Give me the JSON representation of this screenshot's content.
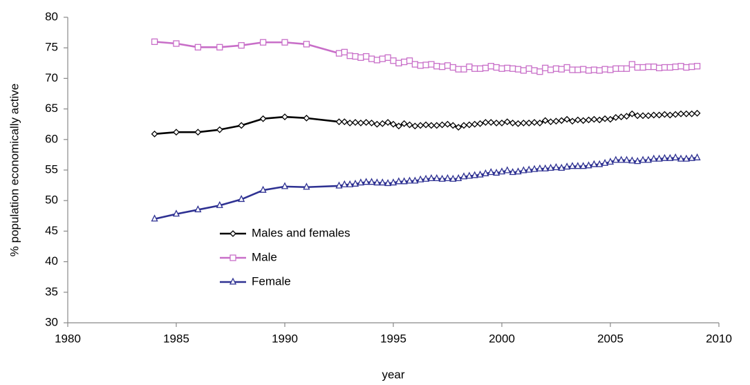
{
  "chart_data": {
    "type": "line",
    "x_label": "year",
    "y_label": "% population economically active",
    "x": [
      1984,
      1985,
      1986,
      1987,
      1988,
      1989,
      1990,
      1991,
      1992.5,
      1992.75,
      1993,
      1993.25,
      1993.5,
      1993.75,
      1994,
      1994.25,
      1994.5,
      1994.75,
      1995,
      1995.25,
      1995.5,
      1995.75,
      1996,
      1996.25,
      1996.5,
      1996.75,
      1997,
      1997.25,
      1997.5,
      1997.75,
      1998,
      1998.25,
      1998.5,
      1998.75,
      1999,
      1999.25,
      1999.5,
      1999.75,
      2000,
      2000.25,
      2000.5,
      2000.75,
      2001,
      2001.25,
      2001.5,
      2001.75,
      2002,
      2002.25,
      2002.5,
      2002.75,
      2003,
      2003.25,
      2003.5,
      2003.75,
      2004,
      2004.25,
      2004.5,
      2004.75,
      2005,
      2005.25,
      2005.5,
      2005.75,
      2006,
      2006.25,
      2006.5,
      2006.75,
      2007,
      2007.25,
      2007.5,
      2007.75,
      2008,
      2008.25,
      2008.5,
      2008.75,
      2009
    ],
    "series": [
      {
        "name": "Males and females",
        "color": "#000000",
        "marker": "diamond",
        "values": [
          60.9,
          61.2,
          61.2,
          61.6,
          62.3,
          63.4,
          63.7,
          63.5,
          62.9,
          62.9,
          62.7,
          62.8,
          62.7,
          62.8,
          62.7,
          62.5,
          62.6,
          62.8,
          62.5,
          62.2,
          62.6,
          62.4,
          62.2,
          62.3,
          62.4,
          62.3,
          62.3,
          62.4,
          62.5,
          62.3,
          62.0,
          62.3,
          62.4,
          62.5,
          62.6,
          62.8,
          62.8,
          62.7,
          62.7,
          62.9,
          62.7,
          62.6,
          62.7,
          62.7,
          62.8,
          62.7,
          63.1,
          62.9,
          63.0,
          63.1,
          63.3,
          63.0,
          63.2,
          63.1,
          63.2,
          63.3,
          63.2,
          63.4,
          63.3,
          63.6,
          63.7,
          63.8,
          64.2,
          63.9,
          63.9,
          63.9,
          64.0,
          64.0,
          64.1,
          64.0,
          64.1,
          64.2,
          64.2,
          64.2,
          64.3
        ]
      },
      {
        "name": "Male",
        "color": "#c86ec8",
        "marker": "square",
        "values": [
          76.0,
          75.7,
          75.1,
          75.1,
          75.4,
          75.9,
          75.9,
          75.6,
          74.1,
          74.3,
          73.7,
          73.6,
          73.4,
          73.6,
          73.2,
          73.0,
          73.2,
          73.4,
          72.9,
          72.5,
          72.7,
          72.9,
          72.3,
          72.1,
          72.2,
          72.3,
          72.0,
          71.9,
          72.1,
          71.8,
          71.5,
          71.5,
          71.9,
          71.6,
          71.6,
          71.7,
          72.0,
          71.8,
          71.6,
          71.7,
          71.6,
          71.5,
          71.3,
          71.6,
          71.3,
          71.1,
          71.7,
          71.4,
          71.6,
          71.5,
          71.8,
          71.4,
          71.4,
          71.5,
          71.3,
          71.4,
          71.3,
          71.5,
          71.4,
          71.6,
          71.6,
          71.6,
          72.3,
          71.8,
          71.8,
          71.9,
          71.9,
          71.7,
          71.8,
          71.8,
          71.9,
          72.0,
          71.8,
          71.9,
          72.0
        ]
      },
      {
        "name": "Female",
        "color": "#2e3192",
        "marker": "triangle",
        "values": [
          47.0,
          47.8,
          48.5,
          49.2,
          50.2,
          51.7,
          52.3,
          52.2,
          52.4,
          52.6,
          52.6,
          52.7,
          52.9,
          53.0,
          53.0,
          52.9,
          52.9,
          52.8,
          52.9,
          53.1,
          53.1,
          53.2,
          53.2,
          53.4,
          53.5,
          53.6,
          53.6,
          53.5,
          53.6,
          53.5,
          53.6,
          53.9,
          54.0,
          54.1,
          54.2,
          54.4,
          54.6,
          54.5,
          54.7,
          54.9,
          54.6,
          54.7,
          54.9,
          55.0,
          55.1,
          55.2,
          55.2,
          55.3,
          55.4,
          55.3,
          55.5,
          55.6,
          55.6,
          55.6,
          55.7,
          55.9,
          55.9,
          56.1,
          56.3,
          56.6,
          56.6,
          56.6,
          56.5,
          56.4,
          56.6,
          56.6,
          56.8,
          56.8,
          56.9,
          56.9,
          57.0,
          56.8,
          56.8,
          56.9,
          57.0
        ]
      }
    ],
    "xlim": [
      1980,
      2010
    ],
    "xticks": [
      1980,
      1985,
      1990,
      1995,
      2000,
      2005,
      2010
    ],
    "ylim": [
      30,
      80
    ],
    "yticks": [
      30,
      35,
      40,
      45,
      50,
      55,
      60,
      65,
      70,
      75,
      80
    ],
    "grid": false,
    "legend": "lower left"
  }
}
